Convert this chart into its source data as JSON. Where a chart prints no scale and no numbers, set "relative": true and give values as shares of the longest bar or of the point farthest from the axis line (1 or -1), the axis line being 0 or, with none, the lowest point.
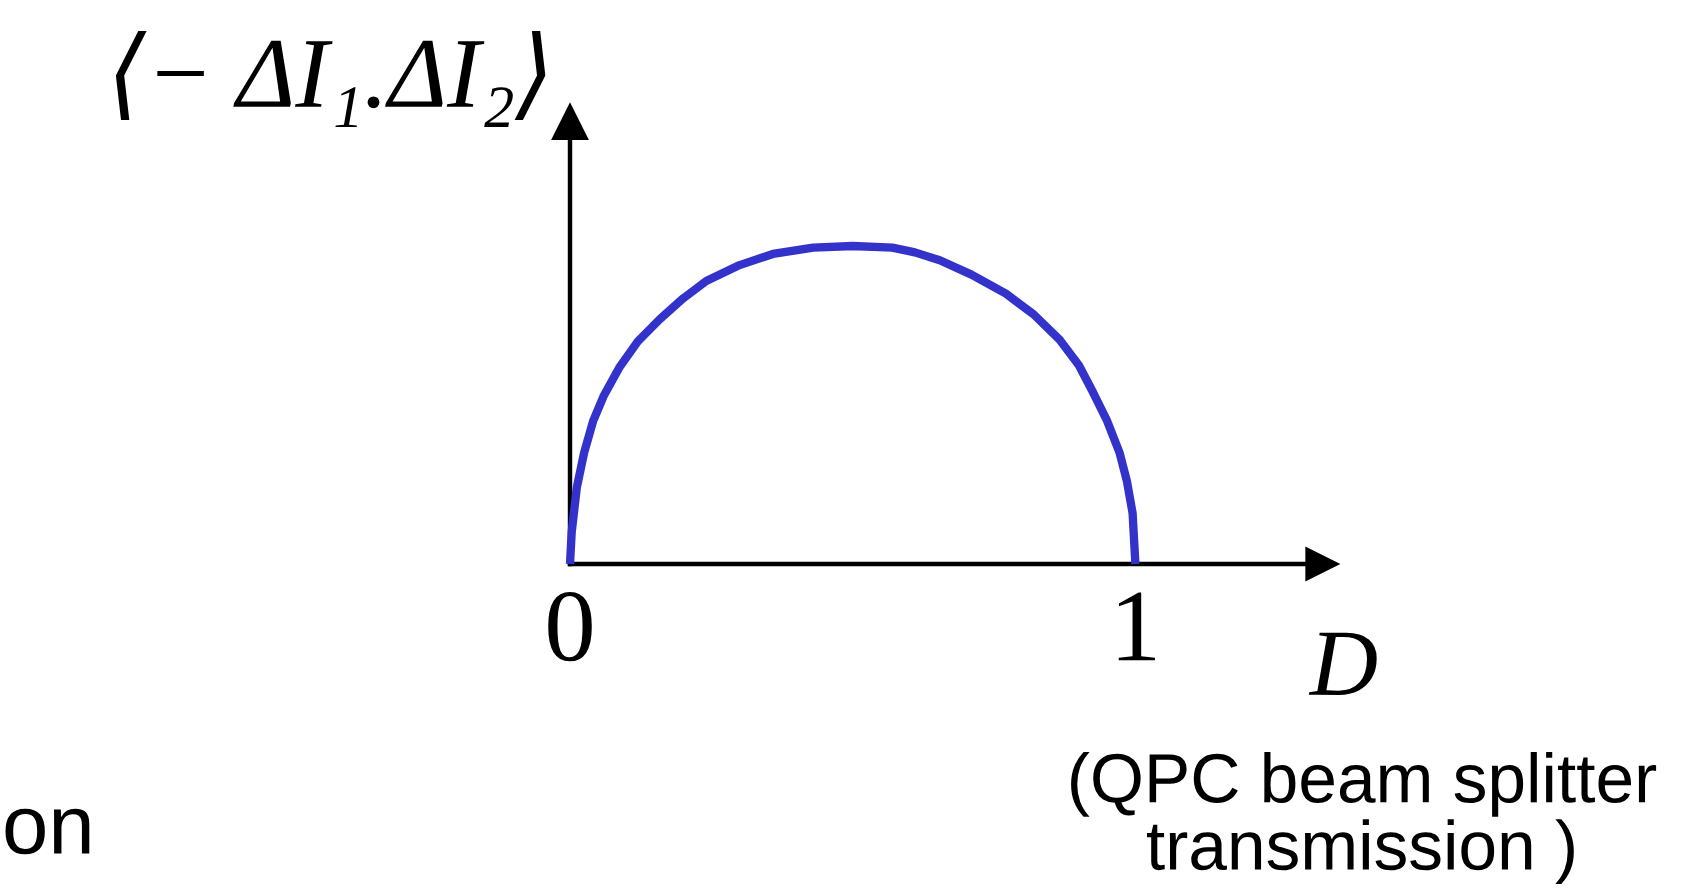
{
  "chart_data": {
    "type": "line",
    "relative": true,
    "ylabel": "⟨− ΔI₁.ΔI₂⟩",
    "xlabel": "D",
    "annotations": [
      "(QPC beam splitter transmission )",
      "on"
    ],
    "x": [
      0,
      0.003,
      0.012,
      0.025,
      0.041,
      0.06,
      0.088,
      0.12,
      0.159,
      0.2,
      0.241,
      0.3,
      0.359,
      0.43,
      0.5,
      0.57,
      0.61,
      0.654,
      0.71,
      0.771,
      0.82,
      0.866,
      0.9,
      0.925,
      0.95,
      0.972,
      0.985,
      0.995,
      1.0
    ],
    "xlim": [
      0,
      1.33
    ],
    "xticks": [
      0,
      1
    ],
    "tick_labels": "x",
    "line_style": "solid",
    "series": [
      {
        "color": "#3333cc",
        "values": [
          0,
          0.1,
          0.24,
          0.35,
          0.45,
          0.53,
          0.62,
          0.7,
          0.77,
          0.835,
          0.89,
          0.94,
          0.975,
          0.995,
          1.0,
          0.995,
          0.98,
          0.955,
          0.91,
          0.85,
          0.785,
          0.705,
          0.625,
          0.54,
          0.45,
          0.35,
          0.26,
          0.16,
          0
        ]
      }
    ]
  }
}
